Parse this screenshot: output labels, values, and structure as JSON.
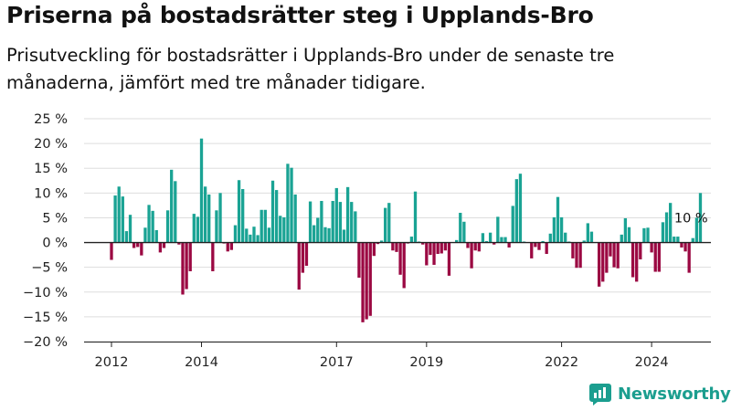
{
  "header": {
    "title": "Priserna på bostadsrätter steg i Upplands-Bro",
    "subtitle": "Prisutveckling för bostadsrätter i Upplands-Bro under de senaste tre månaderna, jämfört med tre månader tidigare."
  },
  "brand": {
    "name": "Newsworthy",
    "icon": "newsworthy-logo-icon"
  },
  "colors": {
    "positive": "#1aa394",
    "negative": "#9b0842",
    "axis": "#222222",
    "grid": "#dddddd",
    "brand": "#1b9e8f"
  },
  "chart_data": {
    "type": "bar",
    "title": "Priserna på bostadsrätter steg i Upplands-Bro",
    "xlabel": "",
    "ylabel": "",
    "ylim": [
      -20,
      25
    ],
    "yticks": [
      25,
      20,
      15,
      10,
      5,
      0,
      -5,
      -10,
      -15,
      -20
    ],
    "ytick_labels": [
      "25 %",
      "20 %",
      "15 %",
      "10 %",
      "5 %",
      "0 %",
      "−5 %",
      "−10 %",
      "−15 %",
      "−20 %"
    ],
    "x_start": "2012-01",
    "xticks": [
      {
        "label": "2012",
        "date": "2012-01"
      },
      {
        "label": "2014",
        "date": "2014-01"
      },
      {
        "label": "2017",
        "date": "2017-01"
      },
      {
        "label": "2019",
        "date": "2019-01"
      },
      {
        "label": "2022",
        "date": "2022-01"
      },
      {
        "label": "2024",
        "date": "2024-01"
      }
    ],
    "annotation": {
      "text": "10 %",
      "date": "2024-12"
    },
    "series": [
      {
        "values": [
          -3.5,
          9.5,
          11.3,
          9.3,
          2.3,
          5.6,
          -1.1,
          -0.9,
          -2.6,
          3,
          7.6,
          6.4,
          2.5,
          -2,
          -1.1,
          6.5,
          14.7,
          12.4,
          -0.4,
          -10.5,
          -9.4,
          -5.8,
          5.8,
          5.2,
          21,
          11.3,
          9.7,
          -5.8,
          6.5,
          10,
          -0.2,
          -1.8,
          -1.5,
          3.5,
          12.6,
          10.8,
          2.8,
          1.6,
          3.2,
          1.5,
          6.6,
          6.6,
          3,
          12.5,
          10.6,
          5.4,
          5.1,
          15.9,
          15.1,
          9.7,
          -9.5,
          -6.1,
          -4.7,
          8.3,
          3.5,
          5,
          8.4,
          3.1,
          2.9,
          8.4,
          11,
          8.2,
          2.6,
          11.2,
          8.2,
          6.3,
          -7.1,
          -16.1,
          -15.5,
          -14.8,
          -2.7,
          -0.3,
          0.4,
          7,
          8,
          -1.6,
          -1.9,
          -6.5,
          -9.2,
          -0.2,
          1.2,
          10.3,
          0.2,
          -0.4,
          -4.6,
          -2.5,
          -4.5,
          -2.3,
          -2.2,
          -1.6,
          -6.7,
          0.1,
          0.5,
          6,
          4.2,
          -1.1,
          -5.2,
          -1.6,
          -1.8,
          1.9,
          0.3,
          2,
          -0.4,
          5.2,
          1.1,
          1.1,
          -1,
          7.4,
          12.8,
          13.9,
          0.2,
          0.1,
          -3.2,
          -0.9,
          -1.5,
          0.3,
          -2.3,
          1.8,
          5.1,
          9.2,
          5.1,
          2,
          0.2,
          -3.2,
          -5.1,
          -5.1,
          0.4,
          3.9,
          2.2,
          0.1,
          -8.9,
          -7.9,
          -6.1,
          -2.8,
          -5,
          -5.2,
          1.6,
          4.9,
          3.1,
          -7,
          -7.9,
          -3.4,
          2.9,
          3,
          -2,
          -5.9,
          -5.9,
          4.1,
          6.1,
          8,
          1.2,
          1.2,
          -1,
          -1.8,
          -6.1,
          0.9,
          5,
          10
        ]
      }
    ],
    "grid": true,
    "legend": "none"
  }
}
